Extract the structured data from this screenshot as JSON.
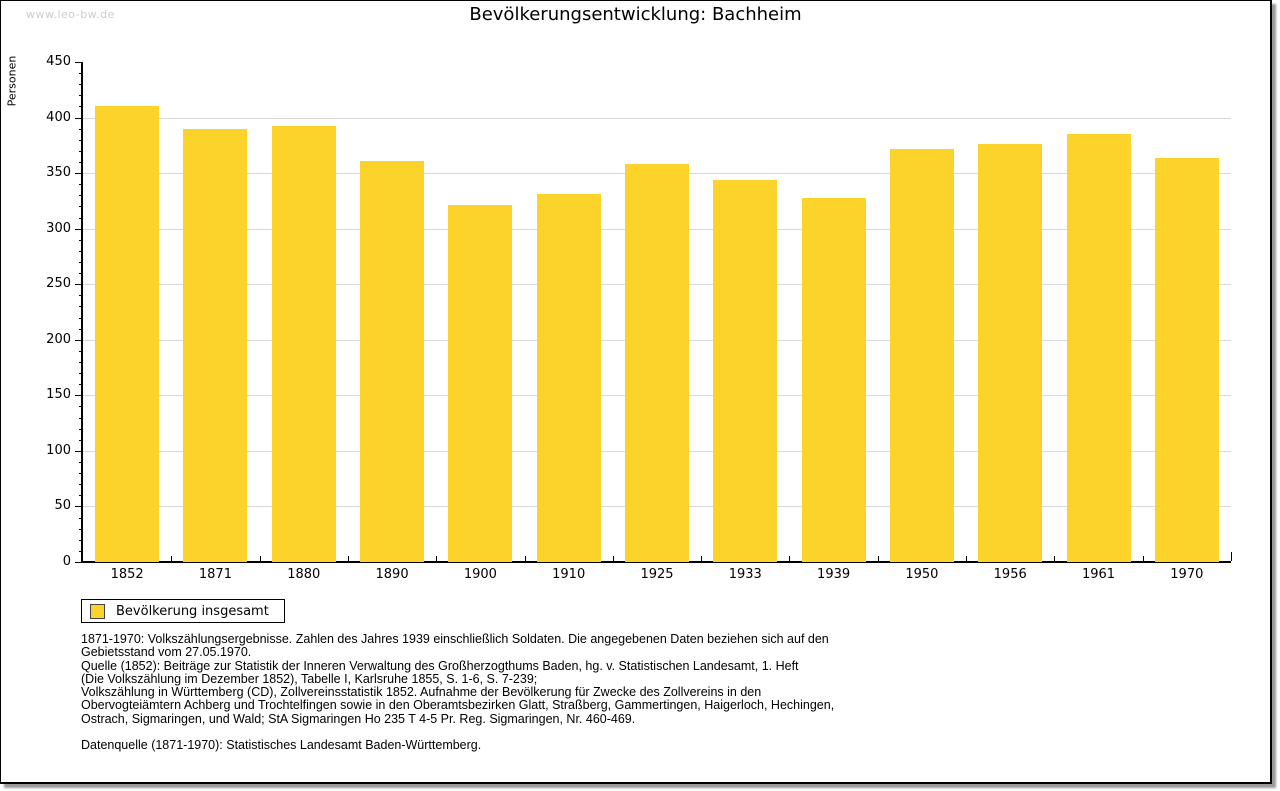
{
  "watermark": "www.leo-bw.de",
  "chart_data": {
    "type": "bar",
    "title": "Bevölkerungsentwicklung: Bachheim",
    "ylabel": "Personen",
    "xlabel": "",
    "categories": [
      "1852",
      "1871",
      "1880",
      "1890",
      "1900",
      "1910",
      "1925",
      "1933",
      "1939",
      "1950",
      "1956",
      "1961",
      "1970"
    ],
    "values": [
      410,
      390,
      392,
      361,
      321,
      331,
      358,
      344,
      328,
      372,
      376,
      385,
      364
    ],
    "series_name": "Bevölkerung insgesamt",
    "ylim": [
      0,
      450
    ],
    "ytick_step": 50,
    "yminor_step": 10,
    "grid": true,
    "legend_position": "bottom-left",
    "bar_color": "#fcd32b"
  },
  "legend": {
    "label": "Bevölkerung insgesamt"
  },
  "colors": {
    "bar": "#fcd32b",
    "gridline": "#d9d9d9",
    "axis": "#000000",
    "watermark": "#cccccc",
    "frame_shadow": "#9a9a9a"
  },
  "footnotes": [
    "1871-1970: Volkszählungsergebnisse. Zahlen des Jahres 1939 einschließlich Soldaten. Die angegebenen Daten beziehen sich auf den",
    "Gebietsstand vom 27.05.1970.",
    "Quelle (1852): Beiträge zur Statistik der Inneren Verwaltung des Großherzogthums Baden, hg. v. Statistischen Landesamt, 1. Heft",
    "(Die Volkszählung im Dezember 1852), Tabelle I, Karlsruhe 1855, S. 1-6, S. 7-239;",
    "Volkszählung in Württemberg (CD), Zollvereinsstatistik 1852. Aufnahme der Bevölkerung für Zwecke des Zollvereins in den",
    "Obervogteiämtern Achberg und Trochtelfingen sowie in den Oberamtsbezirken Glatt, Straßberg, Gammertingen, Haigerloch, Hechingen,",
    "Ostrach, Sigmaringen, und Wald; StA Sigmaringen Ho 235 T 4-5 Pr. Reg. Sigmaringen, Nr. 460-469."
  ],
  "datasource": "Datenquelle (1871-1970): Statistisches Landesamt Baden-Württemberg."
}
